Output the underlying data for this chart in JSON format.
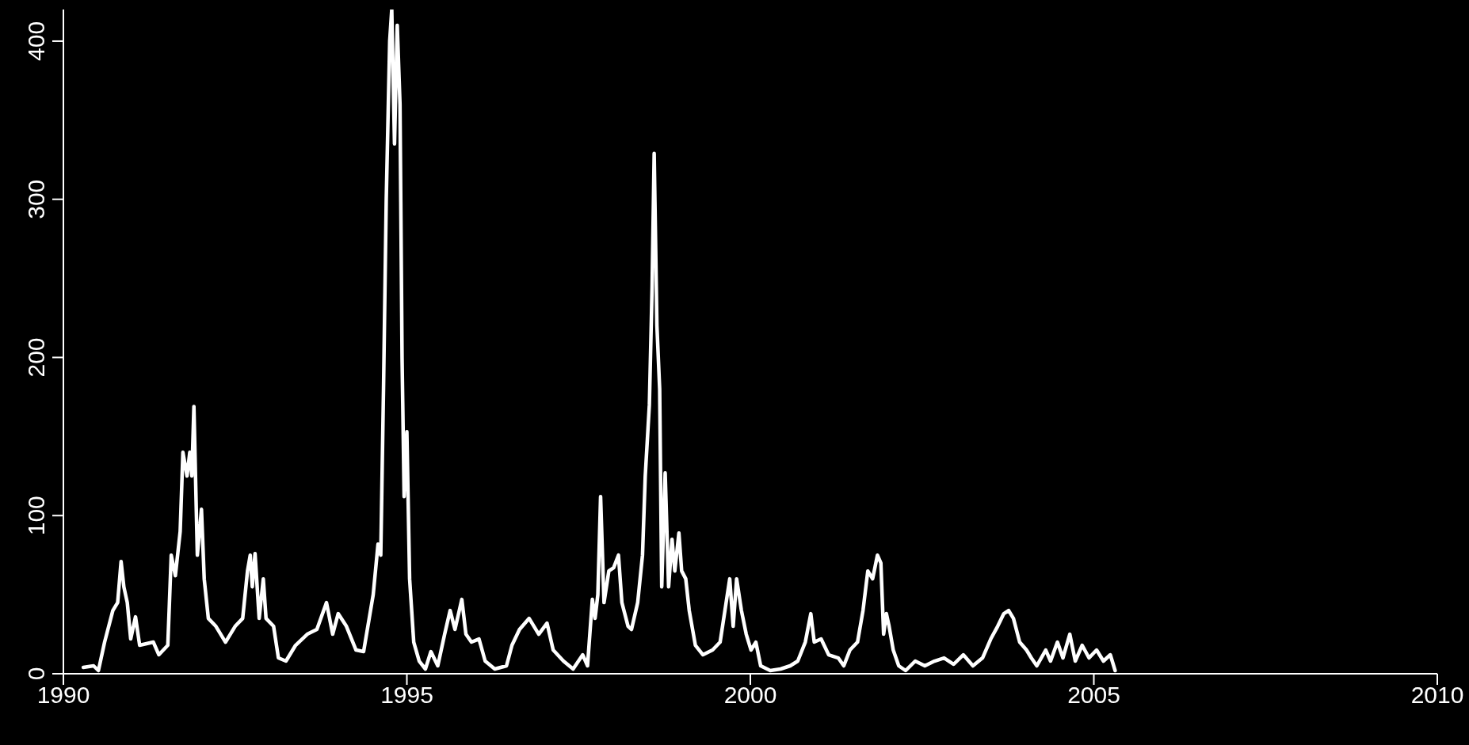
{
  "chart_data": {
    "type": "line",
    "x": [
      1990.29,
      1990.44,
      1990.51,
      1990.6,
      1990.72,
      1990.79,
      1990.84,
      1990.88,
      1990.93,
      1990.98,
      1991.05,
      1991.11,
      1991.31,
      1991.39,
      1991.52,
      1991.57,
      1991.63,
      1991.7,
      1991.74,
      1991.8,
      1991.84,
      1991.87,
      1991.9,
      1991.95,
      1992.01,
      1992.05,
      1992.11,
      1992.22,
      1992.36,
      1992.5,
      1992.61,
      1992.68,
      1992.72,
      1992.75,
      1992.79,
      1992.85,
      1992.91,
      1992.95,
      1993.06,
      1993.13,
      1993.24,
      1993.38,
      1993.55,
      1993.69,
      1993.83,
      1993.92,
      1994.0,
      1994.12,
      1994.26,
      1994.37,
      1994.44,
      1994.51,
      1994.58,
      1994.62,
      1994.66,
      1994.7,
      1994.75,
      1994.78,
      1994.82,
      1994.86,
      1994.9,
      1994.93,
      1994.96,
      1995.0,
      1995.04,
      1995.1,
      1995.18,
      1995.27,
      1995.35,
      1995.45,
      1995.55,
      1995.63,
      1995.7,
      1995.8,
      1995.86,
      1995.94,
      1996.05,
      1996.14,
      1996.28,
      1996.45,
      1996.53,
      1996.64,
      1996.78,
      1996.92,
      1997.04,
      1997.13,
      1997.28,
      1997.42,
      1997.56,
      1997.63,
      1997.7,
      1997.74,
      1997.78,
      1997.82,
      1997.87,
      1997.94,
      1998.01,
      1998.08,
      1998.13,
      1998.22,
      1998.27,
      1998.36,
      1998.43,
      1998.47,
      1998.53,
      1998.57,
      1998.6,
      1998.64,
      1998.68,
      1998.71,
      1998.76,
      1998.81,
      1998.86,
      1998.9,
      1998.96,
      1999.0,
      1999.06,
      1999.11,
      1999.2,
      1999.31,
      1999.45,
      1999.56,
      1999.63,
      1999.7,
      1999.75,
      1999.8,
      1999.87,
      1999.94,
      2000.01,
      2000.08,
      2000.15,
      2000.29,
      2000.44,
      2000.58,
      2000.69,
      2000.8,
      2000.88,
      2000.93,
      2001.03,
      2001.14,
      2001.28,
      2001.36,
      2001.45,
      2001.56,
      2001.64,
      2001.71,
      2001.78,
      2001.85,
      2001.9,
      2001.94,
      2001.98,
      2002.02,
      2002.08,
      2002.16,
      2002.26,
      2002.4,
      2002.54,
      2002.68,
      2002.82,
      2002.96,
      2003.1,
      2003.24,
      2003.38,
      2003.5,
      2003.6,
      2003.69,
      2003.76,
      2003.83,
      2003.92,
      2004.02,
      2004.09,
      2004.17,
      2004.3,
      2004.37,
      2004.47,
      2004.55,
      2004.65,
      2004.73,
      2004.83,
      2004.93,
      2005.04,
      2005.14,
      2005.24,
      2005.31
    ],
    "series": [
      {
        "color": "#ffffff",
        "values": [
          4,
          5,
          2,
          20,
          40,
          45,
          71,
          55,
          45,
          22,
          36,
          18,
          20,
          12,
          18,
          75,
          62,
          90,
          140,
          125,
          140,
          125,
          169,
          75,
          104,
          60,
          35,
          30,
          20,
          30,
          35,
          65,
          75,
          55,
          76,
          35,
          60,
          35,
          30,
          10,
          8,
          18,
          25,
          28,
          45,
          25,
          38,
          30,
          15,
          14,
          32,
          50,
          82,
          75,
          180,
          300,
          400,
          420,
          335,
          410,
          360,
          200,
          112,
          153,
          60,
          20,
          8,
          3,
          14,
          5,
          25,
          40,
          28,
          47,
          25,
          20,
          22,
          8,
          3,
          5,
          18,
          28,
          35,
          25,
          32,
          15,
          8,
          3,
          12,
          5,
          47,
          35,
          50,
          112,
          45,
          65,
          67,
          75,
          45,
          30,
          28,
          45,
          75,
          125,
          170,
          245,
          329,
          220,
          180,
          55,
          127,
          55,
          85,
          65,
          89,
          65,
          60,
          40,
          18,
          12,
          15,
          20,
          40,
          60,
          30,
          60,
          40,
          25,
          15,
          20,
          5,
          2,
          3,
          5,
          8,
          20,
          38,
          20,
          22,
          12,
          10,
          5,
          15,
          20,
          40,
          65,
          60,
          75,
          70,
          25,
          38,
          30,
          15,
          5,
          2,
          8,
          5,
          8,
          10,
          6,
          12,
          5,
          10,
          22,
          30,
          38,
          40,
          35,
          20,
          15,
          10,
          5,
          15,
          8,
          20,
          10,
          25,
          8,
          18,
          10,
          15,
          8,
          12,
          2
        ]
      }
    ],
    "xlim": [
      1990,
      2010
    ],
    "xticks": [
      1990,
      1995,
      2000,
      2005,
      2010
    ],
    "ylim": [
      0,
      420
    ],
    "yticks": [
      0,
      100,
      200,
      300,
      400
    ],
    "grid": false,
    "legend": false,
    "marker": "none",
    "line_style": "solid"
  }
}
